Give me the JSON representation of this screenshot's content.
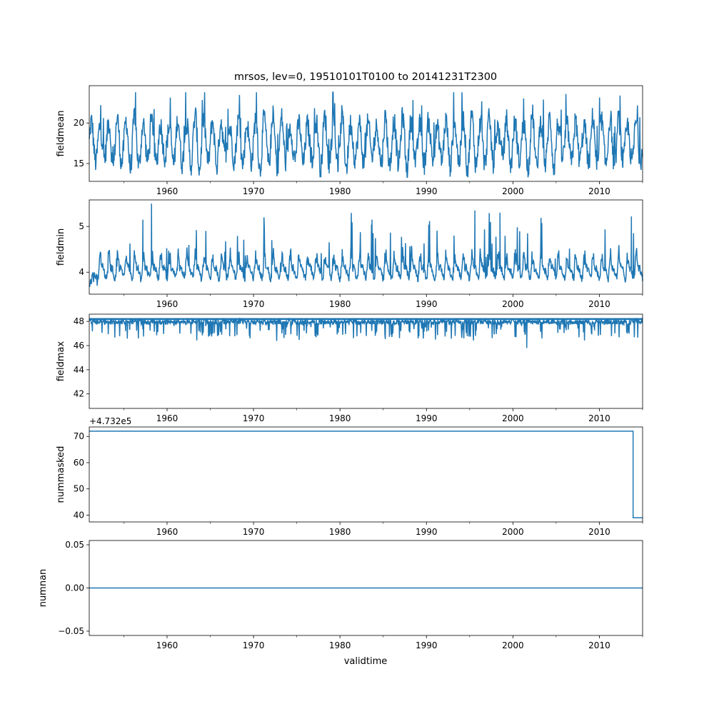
{
  "figure": {
    "title": "mrsos, lev=0, 19510101T0100 to 20141231T2300",
    "xlabel": "validtime",
    "series_color": "#1f77b4"
  },
  "chart_data": [
    {
      "type": "line",
      "ylabel": "fieldmean",
      "x_start": 1951.0,
      "x_end": 2015.0,
      "xlim": [
        1951.0,
        2015.0
      ],
      "ylim": [
        12.8,
        24.6
      ],
      "x_ticks": [
        1960,
        1970,
        1980,
        1990,
        2000,
        2010
      ],
      "y_ticks": [
        15,
        20
      ],
      "offset_label": "",
      "y_range_typical": [
        14.5,
        22.0
      ],
      "y_min_observed": 13.3,
      "y_max_observed": 23.8
    },
    {
      "type": "line",
      "ylabel": "fieldmin",
      "x_start": 1951.0,
      "x_end": 2015.0,
      "xlim": [
        1951.0,
        2015.0
      ],
      "ylim": [
        3.52,
        5.58
      ],
      "x_ticks": [
        1960,
        1970,
        1980,
        1990,
        2000,
        2010
      ],
      "y_ticks": [
        4,
        5
      ],
      "offset_label": "",
      "y_baseline": 3.95,
      "y_max_observed": 5.5,
      "y_min_observed": 3.6
    },
    {
      "type": "line",
      "ylabel": "fieldmax",
      "x_start": 1951.0,
      "x_end": 2015.0,
      "xlim": [
        1951.0,
        2015.0
      ],
      "ylim": [
        40.8,
        48.6
      ],
      "x_ticks": [
        1960,
        1970,
        1980,
        1990,
        2000,
        2010
      ],
      "y_ticks": [
        42,
        44,
        46,
        48
      ],
      "offset_label": "",
      "y_baseline": 48.2,
      "y_min_observed": 45.8
    },
    {
      "type": "line",
      "ylabel": "nummasked",
      "x_start": 1951.0,
      "x_end": 2015.0,
      "xlim": [
        1951.0,
        2015.0
      ],
      "ylim": [
        37.4,
        73.6
      ],
      "x_ticks": [
        1960,
        1970,
        1980,
        1990,
        2000,
        2010
      ],
      "y_ticks": [
        40,
        50,
        60,
        70
      ],
      "offset_label": "+4.732e5",
      "steps": [
        {
          "x": 1951.0,
          "y": 72
        },
        {
          "x": 2013.9,
          "y": 39
        }
      ]
    },
    {
      "type": "line",
      "ylabel": "numnan",
      "x_start": 1951.0,
      "x_end": 2015.0,
      "xlim": [
        1951.0,
        2015.0
      ],
      "ylim": [
        -0.055,
        0.055
      ],
      "x_ticks": [
        1960,
        1970,
        1980,
        1990,
        2000,
        2010
      ],
      "y_ticks": [
        -0.05,
        0.0,
        0.05
      ],
      "y_tick_labels": [
        "−0.05",
        "0.00",
        "0.05"
      ],
      "offset_label": "",
      "constant_value": 0.0
    }
  ]
}
